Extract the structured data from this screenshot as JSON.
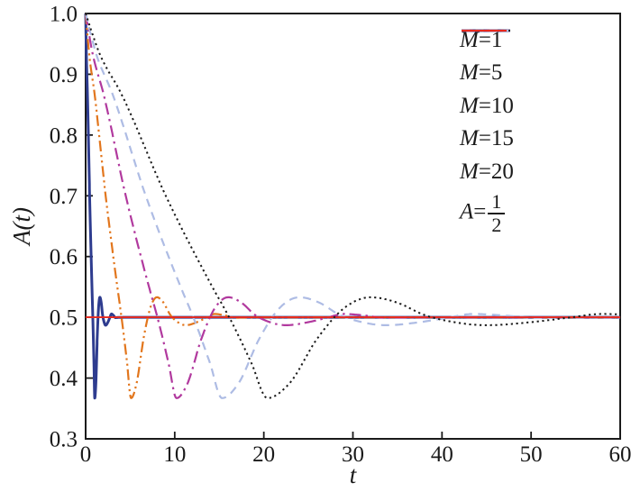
{
  "figure": {
    "title": "",
    "background": "#ffffff"
  },
  "chart_data": {
    "type": "line",
    "title": "",
    "xlabel": "t",
    "ylabel": "A(t)",
    "xlim": [
      0,
      60
    ],
    "ylim": [
      0.3,
      1.0
    ],
    "x_ticks": [
      0,
      10,
      20,
      30,
      40,
      50,
      60
    ],
    "y_ticks": [
      0.3,
      0.4,
      0.5,
      0.6,
      0.7,
      0.8,
      0.9,
      1.0
    ],
    "grid": false,
    "legend_position": "upper-right-inside",
    "axis_color": "#1a1a1a",
    "draw_order": [
      0,
      1,
      2,
      3,
      5,
      4
    ],
    "series": [
      {
        "name": "M=1",
        "M": 1,
        "color": "#2E3C8F",
        "style": "solid",
        "width": 3.0
      },
      {
        "name": "M=5",
        "M": 5,
        "color": "#E2761D",
        "style": "dash-dot-dot",
        "width": 2.2
      },
      {
        "name": "M=10",
        "M": 10,
        "color": "#B1399E",
        "style": "dash-dot",
        "width": 2.2
      },
      {
        "name": "M=15",
        "M": 15,
        "color": "#AEBCE4",
        "style": "dashed",
        "width": 2.2
      },
      {
        "name": "M=20",
        "M": 20,
        "color": "#1A1A1A",
        "style": "dotted",
        "width": 2.0
      },
      {
        "name": "A=1/2",
        "constant": 0.5,
        "color": "#E8291D",
        "style": "solid",
        "width": 1.9
      }
    ],
    "behavior": {
      "initial_value": 1.0,
      "equilibrium": 0.5,
      "note": "Each M-curve is a damped oscillation toward A=0.5 sharing one shape in normalized time tau=t/M: near-linear decay from A(0)=1.0, minimum ~0.366 at t~1.03M, overshoot maximum ~0.533 at t~1.6M, shallow dip ~0.487 at t~2.25M, small bump ~0.505 at t~2.9M, then flat at 0.5.",
      "profile": {
        "tau": [
          0,
          0.07,
          0.2,
          0.45,
          0.7,
          0.82,
          0.93,
          1.02,
          1.14,
          1.3,
          1.45,
          1.6,
          1.75,
          1.9,
          2.05,
          2.25,
          2.5,
          2.7,
          2.9,
          3.1,
          3.35,
          3.7,
          4.2
        ],
        "A": [
          1.0,
          0.94,
          0.868,
          0.7,
          0.556,
          0.492,
          0.425,
          0.367,
          0.39,
          0.465,
          0.515,
          0.533,
          0.524,
          0.504,
          0.493,
          0.487,
          0.492,
          0.499,
          0.5055,
          0.5035,
          0.4995,
          0.4998,
          0.5
        ]
      }
    }
  },
  "legend": {
    "items": [
      {
        "var": "M",
        "rest": "=1"
      },
      {
        "var": "M",
        "rest": "=5"
      },
      {
        "var": "M",
        "rest": "=10"
      },
      {
        "var": "M",
        "rest": "=15"
      },
      {
        "var": "M",
        "rest": "=20"
      },
      {
        "var": "A",
        "rest": "=",
        "num": "1",
        "den": "2"
      }
    ]
  }
}
